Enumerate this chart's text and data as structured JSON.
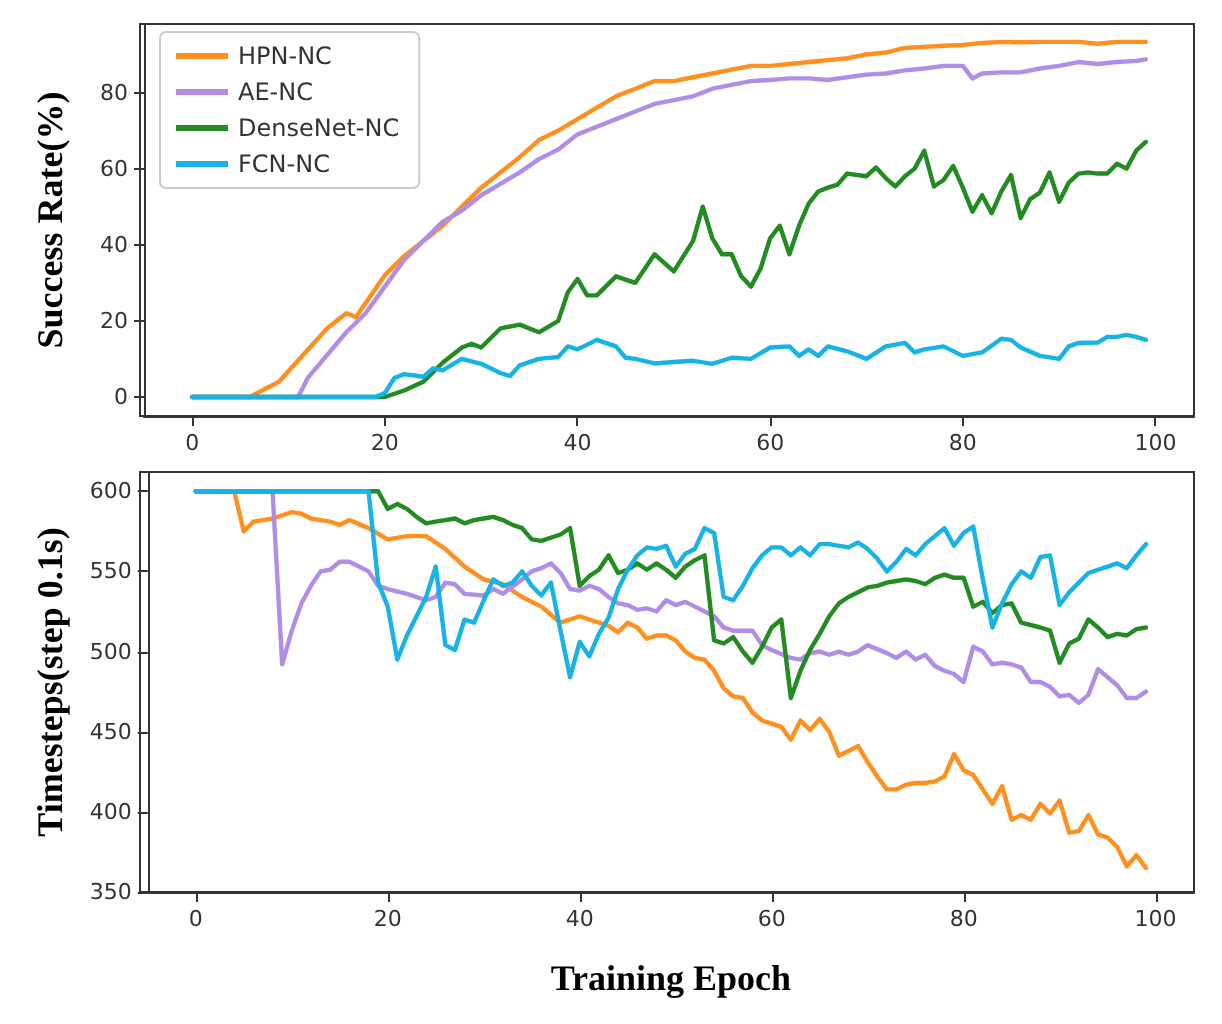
{
  "chart_data": [
    {
      "type": "line",
      "ylabel": "Success Rate(%)",
      "xlim": [
        -5,
        104
      ],
      "xticks": [
        0,
        20,
        40,
        60,
        80,
        100
      ],
      "ylim": [
        -5,
        98
      ],
      "yticks": [
        0,
        20,
        40,
        60,
        80
      ],
      "grid": false,
      "legend": "top left",
      "marker": "none",
      "line_style": "solid",
      "series": [
        {
          "name": "HPN-NC",
          "color": "#ff8f1f",
          "x": [
            0,
            6,
            9,
            14,
            16,
            17,
            20,
            22,
            24,
            26,
            28,
            30,
            32,
            34,
            36,
            38,
            40,
            42,
            44,
            46,
            48,
            50,
            52,
            54,
            56,
            58,
            60,
            62,
            64,
            66,
            68,
            70,
            72,
            74,
            76,
            78,
            80,
            82,
            84,
            86,
            88,
            90,
            92,
            94,
            96,
            98,
            99
          ],
          "values": [
            0,
            0,
            4,
            18,
            22,
            21,
            32,
            37,
            41,
            45,
            50,
            55,
            59,
            63,
            67.5,
            70,
            73,
            76,
            79,
            81,
            83,
            83,
            84,
            85,
            86,
            87,
            87,
            87.5,
            88,
            88.5,
            89,
            90,
            90.5,
            91.7,
            92,
            92.3,
            92.5,
            93,
            93.3,
            93.2,
            93.3,
            93.3,
            93.3,
            92.8,
            93.3,
            93.3,
            93.3
          ]
        },
        {
          "name": "AE-NC",
          "color": "#b08ee8",
          "x": [
            0,
            11,
            12,
            14,
            16,
            18,
            20,
            22,
            24,
            26,
            28,
            30,
            32,
            34,
            36,
            38,
            40,
            42,
            44,
            46,
            48,
            50,
            52,
            54,
            56,
            58,
            60,
            62,
            64,
            66,
            68,
            70,
            72,
            74,
            76,
            78,
            80,
            81,
            82,
            84,
            86,
            88,
            90,
            92,
            94,
            96,
            98,
            99
          ],
          "values": [
            0,
            0,
            5,
            11,
            17,
            22,
            29,
            36,
            41,
            46,
            49,
            53,
            56,
            59,
            62.5,
            65,
            69,
            71,
            73,
            75,
            77,
            78,
            79,
            81,
            82,
            83,
            83.3,
            83.7,
            83.7,
            83.3,
            84,
            84.7,
            85,
            85.8,
            86.3,
            87,
            87,
            83.7,
            85,
            85.3,
            85.3,
            86.3,
            87,
            88,
            87.5,
            88,
            88.3,
            88.7
          ]
        },
        {
          "name": "DenseNet-NC",
          "color": "#228b22",
          "x": [
            0,
            20,
            22,
            24,
            26,
            28,
            29,
            30,
            32,
            34,
            36,
            38,
            39,
            40,
            41,
            42,
            44,
            46,
            48,
            50,
            52,
            53,
            54,
            55,
            56,
            57,
            58,
            59,
            60,
            61,
            62,
            63,
            64,
            65,
            66,
            67,
            68,
            70,
            71,
            72,
            73,
            74,
            75,
            76,
            77,
            78,
            79,
            80,
            81,
            82,
            83,
            84,
            85,
            86,
            87,
            88,
            89,
            90,
            91,
            92,
            93,
            94,
            95,
            96,
            97,
            98,
            99
          ],
          "values": [
            0,
            0,
            1.7,
            4,
            9,
            13,
            14,
            13,
            18,
            19,
            17,
            20,
            27.5,
            31,
            26.7,
            26.7,
            31.7,
            30,
            37.5,
            33,
            41,
            50,
            41.7,
            37.5,
            37.5,
            31.7,
            29,
            33.7,
            41.7,
            45,
            37.5,
            45,
            50.8,
            54,
            55,
            55.8,
            58.7,
            58,
            60.3,
            57.5,
            55.3,
            58,
            60,
            64.7,
            55.3,
            57,
            60.7,
            55,
            48.7,
            53,
            48.3,
            54,
            58.3,
            47,
            52,
            53.7,
            59,
            51.3,
            56.3,
            58.7,
            59,
            58.7,
            58.7,
            61.3,
            60,
            64.7,
            67
          ]
        },
        {
          "name": "FCN-NC",
          "color": "#17b3e6",
          "x": [
            0,
            19,
            20,
            21,
            22,
            24,
            25,
            26,
            28,
            30,
            32,
            33,
            34,
            36,
            38,
            39,
            40,
            42,
            44,
            45,
            46,
            48,
            50,
            52,
            54,
            56,
            58,
            60,
            62,
            63,
            64,
            65,
            66,
            68,
            70,
            72,
            74,
            75,
            76,
            78,
            80,
            82,
            84,
            85,
            86,
            88,
            90,
            91,
            92,
            94,
            95,
            96,
            97,
            98,
            99
          ],
          "values": [
            0,
            0,
            1,
            5,
            6,
            5.3,
            7.5,
            7,
            10,
            8.7,
            6.3,
            5.5,
            8.3,
            10,
            10.5,
            13.3,
            12.5,
            15,
            13.3,
            10.3,
            10,
            8.8,
            9.2,
            9.5,
            8.7,
            10.3,
            10,
            13,
            13.3,
            10.8,
            12.5,
            10.8,
            13.3,
            12,
            10,
            13.3,
            14.2,
            11.7,
            12.5,
            13.3,
            10.8,
            11.7,
            15.3,
            15,
            13,
            10.8,
            10,
            13.3,
            14.2,
            14.3,
            15.8,
            15.8,
            16.3,
            15.8,
            15
          ]
        }
      ]
    },
    {
      "type": "line",
      "xlabel": "Training Epoch",
      "ylabel": "Timesteps(step 0.1s)",
      "xlim": [
        -5,
        104
      ],
      "xticks": [
        0,
        20,
        40,
        60,
        80,
        100
      ],
      "ylim": [
        350,
        612
      ],
      "yticks": [
        350,
        400,
        450,
        500,
        550,
        600
      ],
      "grid": false,
      "legend": false,
      "marker": "none",
      "line_style": "solid",
      "series": [
        {
          "color": "#ff8f1f",
          "x": [
            0,
            4,
            5,
            6,
            7,
            8,
            9,
            10,
            11,
            12,
            13,
            14,
            15,
            16,
            18,
            20,
            22,
            24,
            26,
            28,
            30,
            32,
            34,
            36,
            38,
            40,
            41,
            43,
            44,
            45,
            46,
            47,
            48,
            49,
            50,
            51,
            52,
            53,
            54,
            55,
            56,
            57,
            58,
            59,
            60,
            61,
            62,
            63,
            64,
            65,
            66,
            67,
            68,
            69,
            70,
            71,
            72,
            73,
            74,
            75,
            76,
            77,
            78,
            79,
            80,
            81,
            82,
            83,
            84,
            85,
            86,
            87,
            88,
            89,
            90,
            91,
            92,
            93,
            94,
            95,
            96,
            97,
            98,
            99
          ],
          "values": [
            600,
            600,
            575,
            581,
            582,
            583,
            585,
            587,
            586,
            583,
            582,
            581,
            579,
            582,
            577,
            570,
            572,
            572,
            564,
            553,
            545,
            542,
            534,
            528,
            518,
            522,
            520,
            516,
            512,
            518,
            515,
            508,
            510,
            510,
            507,
            500,
            496,
            495,
            488,
            477,
            472,
            471,
            462,
            457,
            455,
            453,
            445,
            457,
            451,
            458,
            450,
            435,
            438,
            441,
            431,
            422,
            414,
            414,
            417,
            418,
            418,
            419,
            422,
            436,
            426,
            423,
            414,
            405,
            416,
            395,
            398,
            395,
            405,
            399,
            407,
            387,
            388,
            398,
            386,
            384,
            378,
            366,
            373,
            365
          ]
        },
        {
          "color": "#b08ee8",
          "x": [
            0,
            8,
            9,
            10,
            11,
            12,
            13,
            14,
            15,
            16,
            17,
            18,
            19,
            20,
            22,
            24,
            25,
            26,
            27,
            28,
            30,
            31,
            32,
            34,
            35,
            36,
            37,
            38,
            39,
            40,
            41,
            42,
            43,
            44,
            45,
            46,
            47,
            48,
            49,
            50,
            51,
            52,
            54,
            55,
            56,
            58,
            59,
            60,
            62,
            63,
            64,
            65,
            66,
            67,
            68,
            69,
            70,
            72,
            73,
            74,
            75,
            76,
            77,
            78,
            79,
            80,
            81,
            82,
            83,
            84,
            85,
            86,
            87,
            88,
            89,
            90,
            91,
            92,
            93,
            94,
            95,
            96,
            97,
            98,
            99
          ],
          "values": [
            600,
            600,
            492,
            513,
            530,
            541,
            550,
            551,
            556,
            556,
            553,
            550,
            541,
            539,
            536,
            532,
            534,
            543,
            542,
            536,
            535,
            539,
            536,
            545,
            550,
            552,
            555,
            549,
            539,
            538,
            541,
            539,
            534,
            530,
            529,
            526,
            527,
            525,
            532,
            529,
            531,
            528,
            522,
            515,
            513,
            513,
            504,
            501,
            496,
            495,
            499,
            500,
            498,
            500,
            498,
            500,
            504,
            499,
            496,
            500,
            495,
            498,
            491,
            488,
            486,
            481,
            503,
            500,
            492,
            493,
            492,
            490,
            481,
            481,
            478,
            472,
            473,
            468,
            473,
            489,
            484,
            479,
            471,
            471,
            475
          ]
        },
        {
          "color": "#228b22",
          "x": [
            0,
            19,
            20,
            21,
            22,
            23,
            24,
            25,
            26,
            27,
            28,
            29,
            30,
            31,
            32,
            33,
            34,
            35,
            36,
            38,
            39,
            40,
            41,
            42,
            43,
            44,
            45,
            46,
            47,
            48,
            49,
            50,
            51,
            52,
            53,
            54,
            55,
            56,
            57,
            58,
            59,
            60,
            61,
            62,
            63,
            64,
            65,
            66,
            67,
            68,
            69,
            70,
            71,
            72,
            73,
            74,
            75,
            76,
            77,
            78,
            79,
            80,
            81,
            82,
            83,
            84,
            85,
            86,
            88,
            89,
            90,
            91,
            92,
            93,
            94,
            95,
            96,
            97,
            98,
            99
          ],
          "values": [
            600,
            600,
            589,
            592,
            589,
            584,
            580,
            581,
            582,
            583,
            580,
            582,
            583,
            584,
            582,
            579,
            577,
            570,
            569,
            573,
            577,
            541,
            547,
            551,
            560,
            549,
            551,
            555,
            551,
            555,
            551,
            546,
            553,
            557,
            560,
            507,
            505,
            509,
            500,
            493,
            503,
            515,
            520,
            471,
            488,
            501,
            511,
            522,
            530,
            534,
            537,
            540,
            541,
            543,
            544,
            545,
            544,
            542,
            546,
            548,
            546,
            546,
            528,
            531,
            524,
            529,
            530,
            518,
            515,
            513,
            493,
            505,
            508,
            520,
            515,
            509,
            511,
            510,
            514,
            515
          ]
        },
        {
          "color": "#17b3e6",
          "x": [
            0,
            18,
            19,
            20,
            21,
            22,
            24,
            25,
            26,
            27,
            28,
            29,
            30,
            31,
            32,
            33,
            34,
            35,
            36,
            37,
            38,
            39,
            40,
            41,
            42,
            43,
            44,
            45,
            46,
            47,
            48,
            49,
            50,
            51,
            52,
            53,
            54,
            55,
            56,
            57,
            58,
            59,
            60,
            61,
            62,
            63,
            64,
            65,
            66,
            68,
            69,
            70,
            71,
            72,
            73,
            74,
            75,
            76,
            77,
            78,
            79,
            80,
            81,
            82,
            83,
            84,
            85,
            86,
            87,
            88,
            89,
            90,
            91,
            92,
            93,
            94,
            95,
            96,
            97,
            98,
            99
          ],
          "values": [
            600,
            600,
            543,
            528,
            495,
            510,
            534,
            553,
            504,
            501,
            520,
            518,
            532,
            545,
            541,
            543,
            550,
            541,
            535,
            543,
            513,
            484,
            506,
            497,
            511,
            521,
            539,
            551,
            560,
            565,
            564,
            566,
            553,
            561,
            564,
            577,
            574,
            534,
            532,
            541,
            552,
            560,
            565,
            565,
            560,
            565,
            560,
            567,
            567,
            565,
            568,
            564,
            558,
            550,
            556,
            564,
            560,
            567,
            572,
            577,
            566,
            574,
            578,
            545,
            515,
            530,
            542,
            550,
            546,
            559,
            560,
            529,
            537,
            543,
            549,
            551,
            553,
            555,
            552,
            560,
            567
          ]
        }
      ]
    }
  ]
}
